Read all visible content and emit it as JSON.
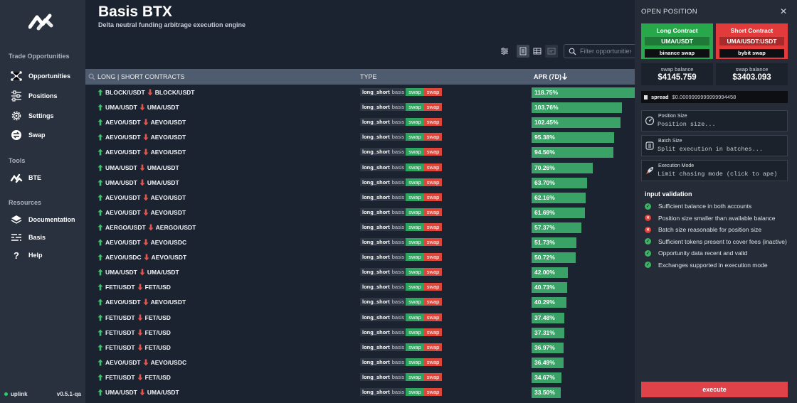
{
  "app": {
    "title": "Basis BTX",
    "subtitle": "Delta neutral funding arbitrage execution engine"
  },
  "sidebar": {
    "sections": [
      {
        "label": "Trade Opportunities",
        "items": [
          {
            "label": "Opportunities",
            "icon": "network-icon"
          },
          {
            "label": "Positions",
            "icon": "sliders-icon"
          },
          {
            "label": "Settings",
            "icon": "gear-icon"
          },
          {
            "label": "Swap",
            "icon": "swap-icon"
          }
        ]
      },
      {
        "label": "Tools",
        "items": [
          {
            "label": "BTE",
            "icon": "bte-logo-icon"
          }
        ]
      },
      {
        "label": "Resources",
        "items": [
          {
            "label": "Documentation",
            "icon": "stack-icon"
          },
          {
            "label": "Basis",
            "icon": "basis-icon"
          },
          {
            "label": "Help",
            "icon": "question-icon"
          }
        ]
      }
    ],
    "footer": {
      "status": "uplink",
      "version": "v0.5.1-qa"
    }
  },
  "toolbar": {
    "search_placeholder": "Filter opportunities"
  },
  "table": {
    "columns": [
      "LONG | SHORT CONTRACTS",
      "TYPE",
      "APR (7D)"
    ],
    "type_main": "long_short",
    "type_sub": "basis",
    "badge_long": "swap",
    "badge_short": "swap",
    "rows": [
      {
        "long": "BLOCK/USDT",
        "short": "BLOCK/USDT",
        "apr": "118.75%"
      },
      {
        "long": "UMA/USDT",
        "short": "UMA/USDT",
        "apr": "103.76%"
      },
      {
        "long": "AEVO/USDT",
        "short": "AEVO/USDT",
        "apr": "102.45%"
      },
      {
        "long": "AEVO/USDT",
        "short": "AEVO/USDT",
        "apr": "95.38%"
      },
      {
        "long": "AEVO/USDT",
        "short": "AEVO/USDT",
        "apr": "94.56%"
      },
      {
        "long": "UMA/USDT",
        "short": "UMA/USDT",
        "apr": "70.26%"
      },
      {
        "long": "UMA/USDT",
        "short": "UMA/USDT",
        "apr": "63.70%"
      },
      {
        "long": "AEVO/USDT",
        "short": "AEVO/USDT",
        "apr": "62.16%"
      },
      {
        "long": "AEVO/USDT",
        "short": "AEVO/USDT",
        "apr": "61.69%"
      },
      {
        "long": "AERGO/USDT",
        "short": "AERGO/USDT",
        "apr": "57.37%"
      },
      {
        "long": "AEVO/USDT",
        "short": "AEVO/USDC",
        "apr": "51.73%"
      },
      {
        "long": "AEVO/USDC",
        "short": "AEVO/USDT",
        "apr": "50.72%"
      },
      {
        "long": "UMA/USDT",
        "short": "UMA/USDT",
        "apr": "42.00%"
      },
      {
        "long": "FET/USDT",
        "short": "FET/USD",
        "apr": "40.73%"
      },
      {
        "long": "AEVO/USDT",
        "short": "AEVO/USDT",
        "apr": "40.29%"
      },
      {
        "long": "FET/USDT",
        "short": "FET/USD",
        "apr": "37.48%"
      },
      {
        "long": "FET/USDT",
        "short": "FET/USD",
        "apr": "37.31%"
      },
      {
        "long": "FET/USDT",
        "short": "FET/USD",
        "apr": "36.97%"
      },
      {
        "long": "AEVO/USDT",
        "short": "AEVO/USDC",
        "apr": "36.49%"
      },
      {
        "long": "FET/USDT",
        "short": "FET/USD",
        "apr": "34.67%"
      },
      {
        "long": "UMA/USDT",
        "short": "UMA/USDT",
        "apr": "33.50%"
      }
    ]
  },
  "panel": {
    "title": "OPEN POSITION",
    "long": {
      "label": "Long Contract",
      "symbol": "UMA/USDT",
      "exchange": "binance swap",
      "balance_label": "swap balance",
      "balance": "$4145.759"
    },
    "short": {
      "label": "Short Contract",
      "symbol": "UMA/USDT:USDT",
      "exchange": "bybit swap",
      "balance_label": "swap balance",
      "balance": "$3403.093"
    },
    "spread_label": "spread",
    "spread_value": "$0.0009999999999994458",
    "fields": [
      {
        "label": "Position Size",
        "placeholder": "Position size...",
        "icon": "scale-icon"
      },
      {
        "label": "Batch Size",
        "placeholder": "Split execution in batches...",
        "icon": "batch-icon"
      },
      {
        "label": "Execution Mode",
        "placeholder": "Limit chasing mode (click to ape)",
        "icon": "rocket-icon"
      }
    ],
    "validation_title": "input validation",
    "validation": [
      {
        "label": "Sufficient balance in both accounts",
        "ok": true
      },
      {
        "label": "Position size smaller than available balance",
        "ok": false
      },
      {
        "label": "Batch size reasonable for position size",
        "ok": false
      },
      {
        "label": "Sufficient tokens present to cover fees (inactive)",
        "ok": true
      },
      {
        "label": "Opportunity data recent and valid",
        "ok": true
      },
      {
        "label": "Exchanges supported in execution mode",
        "ok": true
      }
    ],
    "execute_label": "execute"
  },
  "colors": {
    "long": "#27a84b",
    "short": "#e33b3b",
    "apr_bar": "#3aa267",
    "execute": "#e0424a"
  }
}
